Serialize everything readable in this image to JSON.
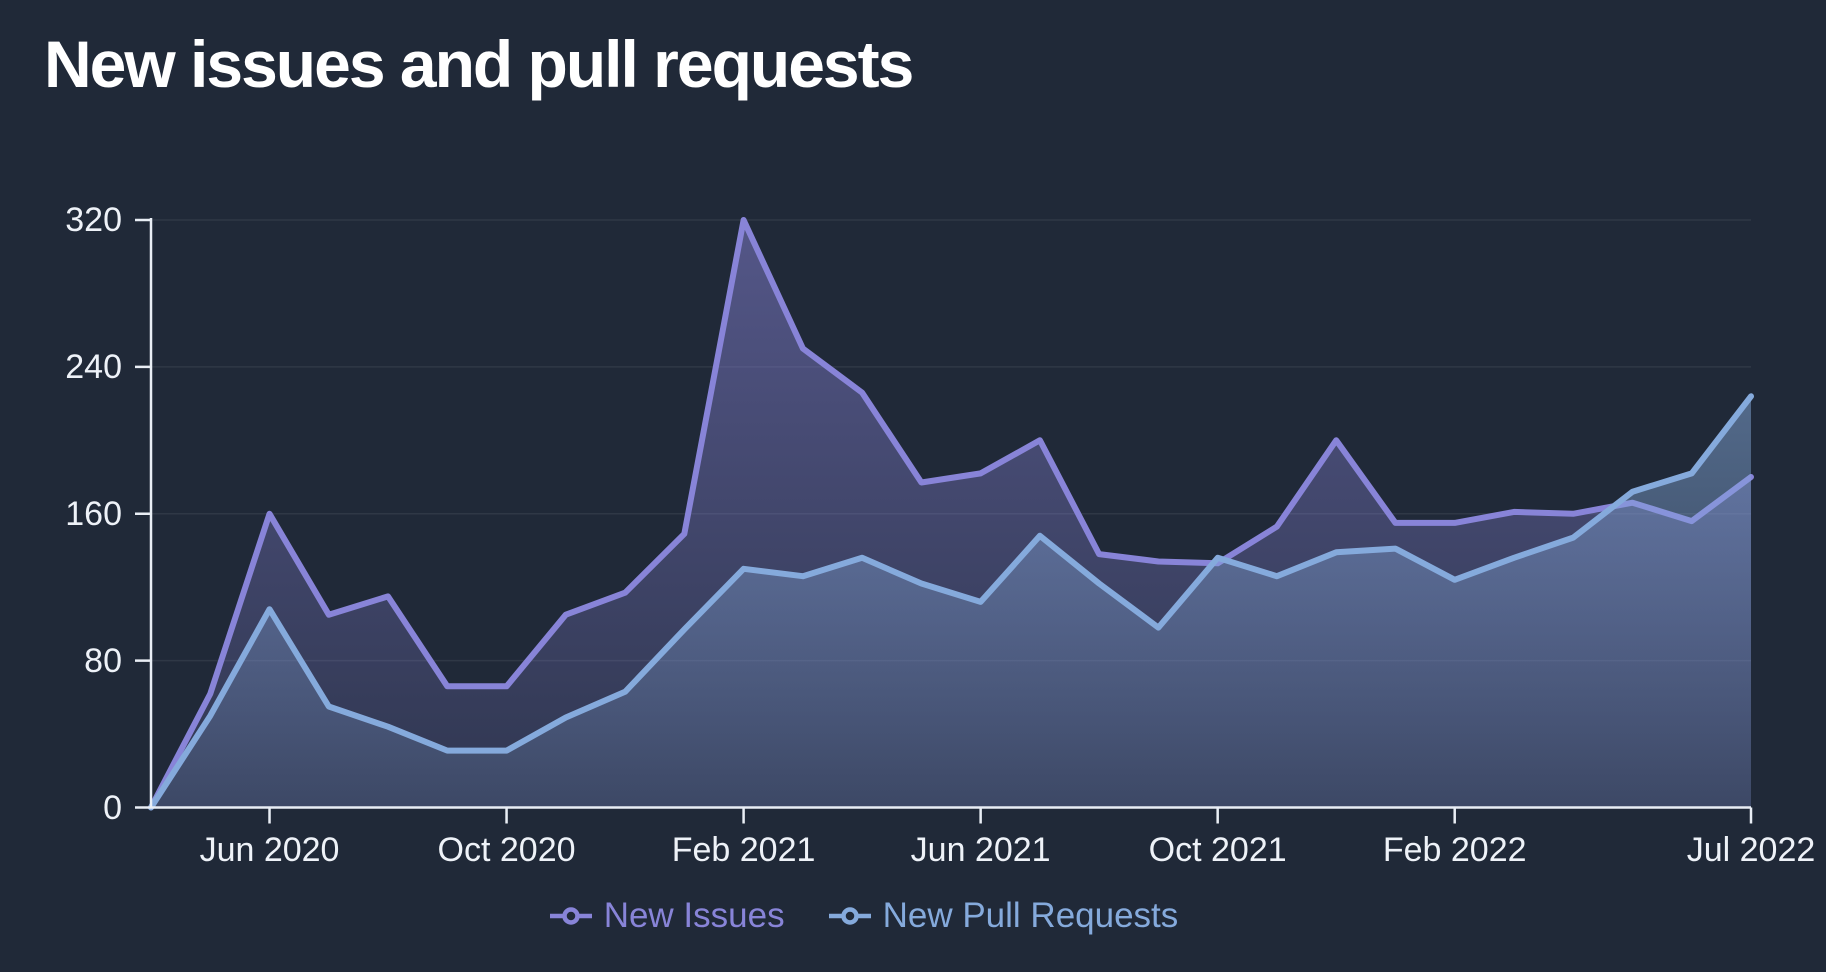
{
  "title": "New issues and pull requests",
  "colors": {
    "background": "#202938",
    "axis": "#e9eef5",
    "grid_line": "rgba(255,255,255,0.07)",
    "issues_accent": "#8884d8",
    "pull_requests_accent": "#85aadc"
  },
  "legend": {
    "items": [
      {
        "label": "New Issues",
        "color": "#8884d8"
      },
      {
        "label": "New Pull Requests",
        "color": "#85aadc"
      }
    ]
  },
  "chart_data": {
    "type": "area",
    "title": "New issues and pull requests",
    "xlabel": "",
    "ylabel": "",
    "x": [
      "Apr 2020",
      "May 2020",
      "Jun 2020",
      "Jul 2020",
      "Aug 2020",
      "Sep 2020",
      "Oct 2020",
      "Nov 2020",
      "Dec 2020",
      "Jan 2021",
      "Feb 2021",
      "Mar 2021",
      "Apr 2021",
      "May 2021",
      "Jun 2021",
      "Jul 2021",
      "Aug 2021",
      "Sep 2021",
      "Oct 2021",
      "Nov 2021",
      "Dec 2021",
      "Jan 2022",
      "Feb 2022",
      "Mar 2022",
      "Apr 2022",
      "May 2022",
      "Jun 2022",
      "Jul 2022"
    ],
    "series": [
      {
        "name": "New Issues",
        "color": "#8884d8",
        "values": [
          0,
          62,
          160,
          105,
          115,
          66,
          66,
          105,
          117,
          149,
          320,
          250,
          226,
          177,
          182,
          200,
          138,
          134,
          133,
          153,
          200,
          155,
          155,
          161,
          160,
          166,
          156,
          180
        ]
      },
      {
        "name": "New Pull Requests",
        "color": "#85aadc",
        "values": [
          0,
          50,
          108,
          55,
          44,
          31,
          31,
          49,
          63,
          97,
          130,
          126,
          136,
          122,
          112,
          148,
          122,
          98,
          136,
          126,
          139,
          141,
          124,
          136,
          147,
          172,
          182,
          224
        ]
      }
    ],
    "x_tick_labels": [
      "Jun 2020",
      "Oct 2020",
      "Feb 2021",
      "Jun 2021",
      "Oct 2021",
      "Feb 2022",
      "Jul 2022"
    ],
    "x_tick_indices": [
      2,
      6,
      10,
      14,
      18,
      22,
      27
    ],
    "y_ticks": [
      0,
      80,
      160,
      240,
      320
    ],
    "ylim": [
      0,
      320
    ],
    "grid": "horizontal",
    "legend_position": "bottom"
  }
}
